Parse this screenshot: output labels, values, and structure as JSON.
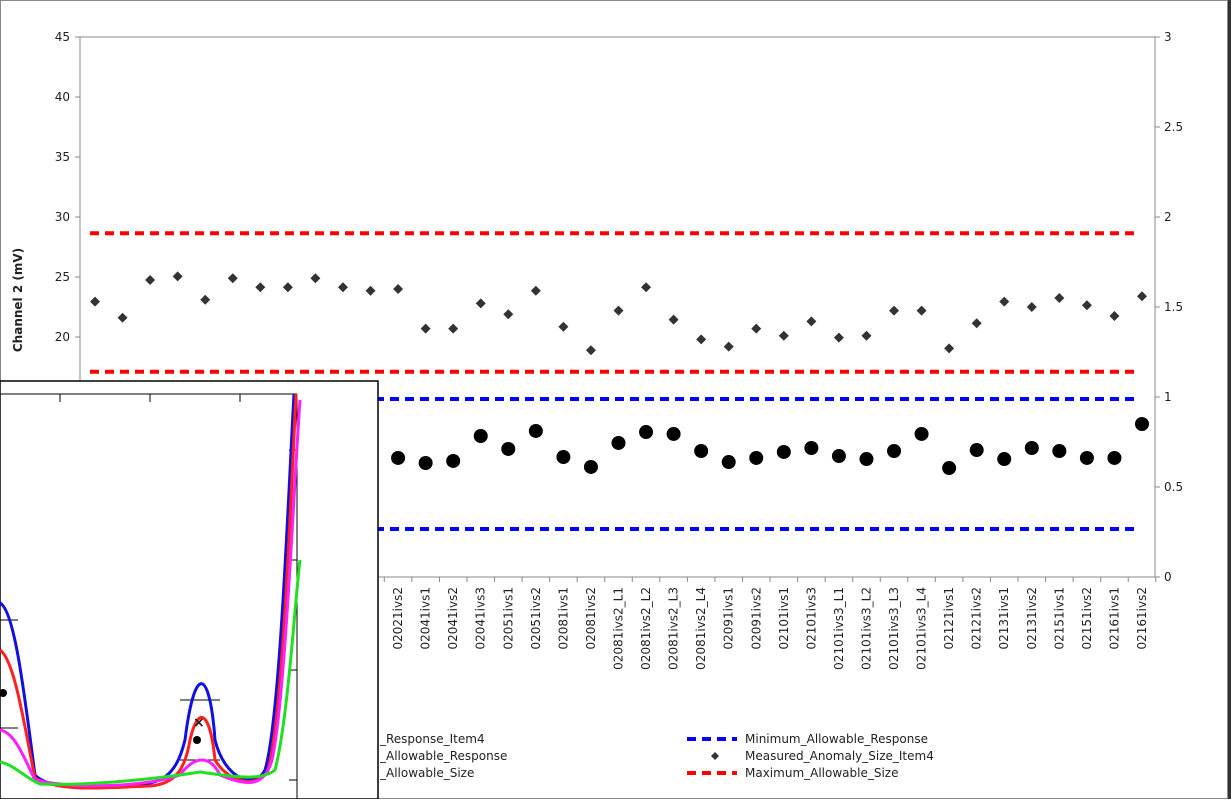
{
  "chart_data": {
    "type": "scatter",
    "y_axis_label": "Channel 2 (mV)",
    "categories": [
      null,
      null,
      null,
      null,
      null,
      null,
      null,
      null,
      null,
      null,
      null,
      "02021ivs2",
      "02041ivs1",
      "02041ivs2",
      "02041ivs3",
      "02051ivs1",
      "02051ivs2",
      "02081ivs1",
      "02081ivs2",
      "02081ivs2_L1",
      "02081ivs2_L2",
      "02081ivs2_L3",
      "02081ivs2_L4",
      "02091ivs1",
      "02091ivs2",
      "02101ivs1",
      "02101ivs3",
      "02101ivs3_L1",
      "02101ivs3_L2",
      "02101ivs3_L3",
      "02101ivs3_L4",
      "02121ivs1",
      "02121ivs2",
      "02131ivs1",
      "02131ivs2",
      "02151ivs1",
      "02151ivs2",
      "02161ivs1",
      "02161ivs2"
    ],
    "ylim": [
      0,
      45
    ],
    "yticks": [
      20,
      25,
      30,
      35,
      40,
      45
    ],
    "y2lim": [
      0,
      3
    ],
    "y2ticks": [
      0,
      0.5,
      1,
      1.5,
      2,
      2.5,
      3
    ],
    "series": [
      {
        "name": "_Response_Item4",
        "color": "#000000",
        "marker": "circle",
        "axis": "y",
        "values": [
          null,
          null,
          null,
          null,
          null,
          null,
          null,
          null,
          null,
          null,
          null,
          9.92,
          9.5,
          9.67,
          11.75,
          10.67,
          12.17,
          10,
          9.17,
          11.17,
          12.08,
          11.92,
          10.5,
          9.58,
          9.92,
          10.42,
          10.75,
          10.08,
          9.83,
          10.5,
          11.92,
          9.08,
          10.58,
          9.83,
          10.75,
          10.5,
          9.92,
          9.92,
          12.75
        ]
      },
      {
        "name": "Measured_Anomaly_Size_Item4",
        "color": "#333333",
        "marker": "diamond",
        "axis": "y2",
        "values": [
          1.53,
          1.44,
          1.65,
          1.67,
          1.54,
          1.66,
          1.61,
          1.61,
          1.66,
          1.61,
          1.59,
          1.6,
          1.38,
          1.38,
          1.52,
          1.46,
          1.59,
          1.39,
          1.26,
          1.48,
          1.61,
          1.43,
          1.32,
          1.28,
          1.38,
          1.34,
          1.42,
          1.33,
          1.34,
          1.48,
          1.48,
          1.27,
          1.41,
          1.53,
          1.5,
          1.55,
          1.51,
          1.45,
          1.56
        ]
      }
    ],
    "reference_lines": [
      {
        "name": "_Allowable_Response",
        "color": "#0000ff",
        "axis": "y",
        "value": 14.83
      },
      {
        "name": "_Allowable_Size",
        "color": "#ff0000",
        "axis": "y2",
        "value": 1.14
      },
      {
        "name": "Minimum_Allowable_Response",
        "color": "#0000ff",
        "axis": "y",
        "value": 4
      },
      {
        "name": "Maximum_Allowable_Size",
        "color": "#ff0000",
        "axis": "y2",
        "value": 1.91
      }
    ]
  }
}
